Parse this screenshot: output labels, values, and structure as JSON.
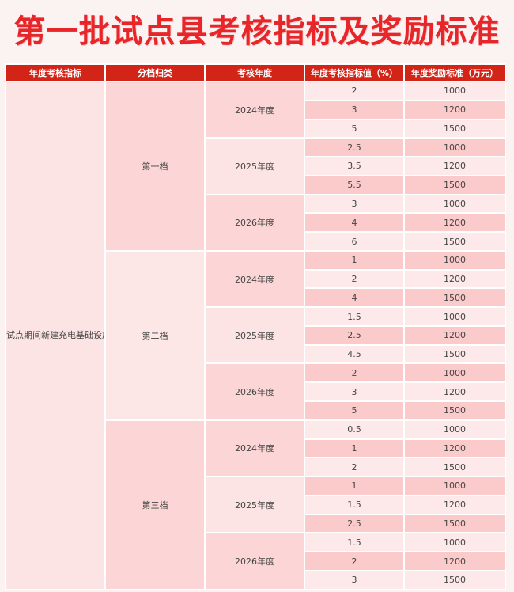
{
  "title": "第一批试点县考核指标及奖励标准",
  "headers": [
    "年度考核指标",
    "分档归类",
    "考核年度",
    "年度考核指标值（%）",
    "年度奖励标准（万元）"
  ],
  "indicator": "试点期间新建充电基础设施功率利用率",
  "tiers": [
    {
      "name": "第一档",
      "years": [
        {
          "year": "2024年度",
          "rows": [
            [
              "2",
              "1000"
            ],
            [
              "3",
              "1200"
            ],
            [
              "5",
              "1500"
            ]
          ]
        },
        {
          "year": "2025年度",
          "rows": [
            [
              "2.5",
              "1000"
            ],
            [
              "3.5",
              "1200"
            ],
            [
              "5.5",
              "1500"
            ]
          ]
        },
        {
          "year": "2026年度",
          "rows": [
            [
              "3",
              "1000"
            ],
            [
              "4",
              "1200"
            ],
            [
              "6",
              "1500"
            ]
          ]
        }
      ]
    },
    {
      "name": "第二档",
      "years": [
        {
          "year": "2024年度",
          "rows": [
            [
              "1",
              "1000"
            ],
            [
              "2",
              "1200"
            ],
            [
              "4",
              "1500"
            ]
          ]
        },
        {
          "year": "2025年度",
          "rows": [
            [
              "1.5",
              "1000"
            ],
            [
              "2.5",
              "1200"
            ],
            [
              "4.5",
              "1500"
            ]
          ]
        },
        {
          "year": "2026年度",
          "rows": [
            [
              "2",
              "1000"
            ],
            [
              "3",
              "1200"
            ],
            [
              "5",
              "1500"
            ]
          ]
        }
      ]
    },
    {
      "name": "第三档",
      "years": [
        {
          "year": "2024年度",
          "rows": [
            [
              "0.5",
              "1000"
            ],
            [
              "1",
              "1200"
            ],
            [
              "2",
              "1500"
            ]
          ]
        },
        {
          "year": "2025年度",
          "rows": [
            [
              "1",
              "1000"
            ],
            [
              "1.5",
              "1200"
            ],
            [
              "2.5",
              "1500"
            ]
          ]
        },
        {
          "year": "2026年度",
          "rows": [
            [
              "1.5",
              "1000"
            ],
            [
              "2",
              "1200"
            ],
            [
              "3",
              "1500"
            ]
          ]
        }
      ]
    }
  ]
}
